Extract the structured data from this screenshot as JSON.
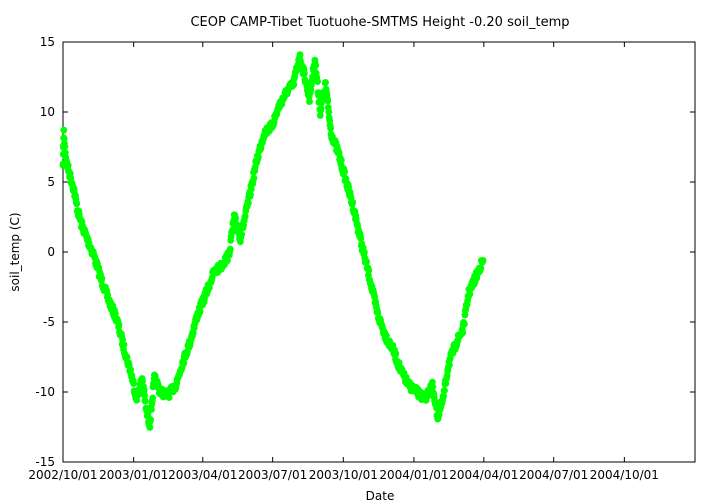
{
  "chart_data": {
    "type": "scatter",
    "title": "CEOP CAMP-Tibet Tuotuohe-SMTMS Height -0.20 soil_temp",
    "xlabel": "Date",
    "ylabel": "soil_temp (C)",
    "xlim": [
      "2002-10-01",
      "2005-01-01"
    ],
    "ylim": [
      -15,
      15
    ],
    "x_ticks": [
      "2002/10/01",
      "2003/01/01",
      "2003/04/01",
      "2003/07/01",
      "2003/10/01",
      "2004/01/01",
      "2004/04/01",
      "2004/07/01",
      "2004/10/01"
    ],
    "y_ticks": [
      -15,
      -10,
      -5,
      0,
      5,
      10,
      15
    ],
    "grid": false,
    "series": [
      {
        "color": "#00ff00",
        "points": [
          [
            "2002-10-01",
            6.0
          ],
          [
            "2002-10-02",
            8.6
          ],
          [
            "2002-10-05",
            6.5
          ],
          [
            "2002-10-10",
            5.5
          ],
          [
            "2002-10-15",
            4.5
          ],
          [
            "2002-10-20",
            3.0
          ],
          [
            "2002-10-25",
            2.0
          ],
          [
            "2002-11-01",
            1.0
          ],
          [
            "2002-11-10",
            -0.2
          ],
          [
            "2002-11-20",
            -2.0
          ],
          [
            "2002-11-30",
            -3.5
          ],
          [
            "2002-12-10",
            -4.8
          ],
          [
            "2002-12-20",
            -7.0
          ],
          [
            "2002-12-28",
            -8.5
          ],
          [
            "2003-01-05",
            -10.5
          ],
          [
            "2003-01-12",
            -9.0
          ],
          [
            "2003-01-18",
            -11.5
          ],
          [
            "2003-01-22",
            -12.3
          ],
          [
            "2003-01-28",
            -9.0
          ],
          [
            "2003-02-05",
            -10.0
          ],
          [
            "2003-02-15",
            -10.2
          ],
          [
            "2003-02-25",
            -9.5
          ],
          [
            "2003-03-05",
            -8.0
          ],
          [
            "2003-03-15",
            -6.5
          ],
          [
            "2003-03-25",
            -4.5
          ],
          [
            "2003-04-05",
            -3.0
          ],
          [
            "2003-04-15",
            -1.5
          ],
          [
            "2003-04-25",
            -1.0
          ],
          [
            "2003-05-05",
            -0.2
          ],
          [
            "2003-05-12",
            2.5
          ],
          [
            "2003-05-20",
            1.0
          ],
          [
            "2003-06-01",
            4.0
          ],
          [
            "2003-06-10",
            6.5
          ],
          [
            "2003-06-20",
            8.5
          ],
          [
            "2003-06-30",
            9.0
          ],
          [
            "2003-07-10",
            10.5
          ],
          [
            "2003-07-20",
            11.5
          ],
          [
            "2003-07-28",
            12.0
          ],
          [
            "2003-08-05",
            14.0
          ],
          [
            "2003-08-12",
            12.5
          ],
          [
            "2003-08-18",
            11.0
          ],
          [
            "2003-08-25",
            13.8
          ],
          [
            "2003-09-01",
            10.0
          ],
          [
            "2003-09-08",
            12.0
          ],
          [
            "2003-09-15",
            8.5
          ],
          [
            "2003-09-25",
            7.0
          ],
          [
            "2003-10-05",
            5.0
          ],
          [
            "2003-10-15",
            3.0
          ],
          [
            "2003-10-25",
            0.5
          ],
          [
            "2003-11-05",
            -2.0
          ],
          [
            "2003-11-15",
            -4.5
          ],
          [
            "2003-11-25",
            -6.0
          ],
          [
            "2003-12-05",
            -7.0
          ],
          [
            "2003-12-15",
            -8.5
          ],
          [
            "2003-12-25",
            -9.5
          ],
          [
            "2004-01-05",
            -10.0
          ],
          [
            "2004-01-15",
            -10.5
          ],
          [
            "2004-01-25",
            -9.5
          ],
          [
            "2004-02-01",
            -11.8
          ],
          [
            "2004-02-08",
            -10.5
          ],
          [
            "2004-02-15",
            -8.0
          ],
          [
            "2004-02-25",
            -6.5
          ],
          [
            "2004-03-05",
            -5.5
          ],
          [
            "2004-03-12",
            -3.0
          ],
          [
            "2004-03-20",
            -2.0
          ],
          [
            "2004-03-26",
            -1.2
          ],
          [
            "2004-03-31",
            -0.6
          ]
        ]
      }
    ]
  }
}
